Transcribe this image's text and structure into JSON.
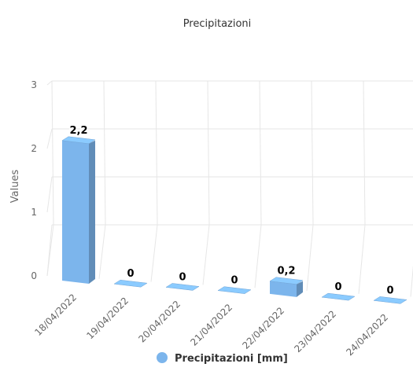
{
  "chart_data": {
    "type": "bar",
    "title": "Precipitazioni",
    "ylabel": "Values",
    "xlabel": "",
    "categories": [
      "18/04/2022",
      "19/04/2022",
      "20/04/2022",
      "21/04/2022",
      "22/04/2022",
      "23/04/2022",
      "24/04/2022"
    ],
    "series": [
      {
        "name": "Precipitazioni [mm]",
        "values": [
          2.2,
          0,
          0,
          0,
          0.2,
          0,
          0
        ],
        "data_labels": [
          "2,2",
          "0",
          "0",
          "0",
          "0,2",
          "0",
          "0"
        ],
        "color": "#7cb5ec"
      }
    ],
    "y_ticks": [
      "0",
      "1",
      "2",
      "3"
    ],
    "ylim": [
      0,
      3
    ],
    "grid": true,
    "legend_position": "bottom-center",
    "perspective": "3d"
  }
}
